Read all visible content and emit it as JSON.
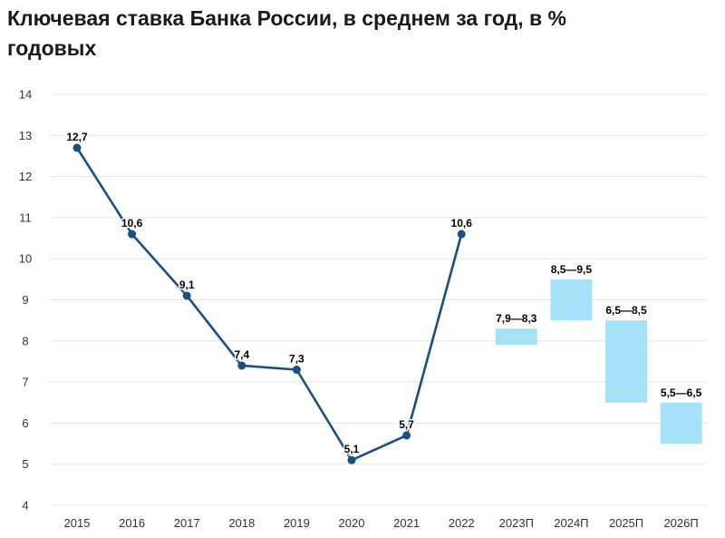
{
  "chart_data": {
    "type": "line",
    "title": "Ключевая ставка Банка России, в среднем за год, в % годовых",
    "xlabel": "",
    "ylabel": "",
    "ylim": [
      4,
      14
    ],
    "yticks": [
      "4",
      "5",
      "6",
      "7",
      "8",
      "9",
      "10",
      "11",
      "12",
      "13",
      "14"
    ],
    "categories": [
      "2015",
      "2016",
      "2017",
      "2018",
      "2019",
      "2020",
      "2021",
      "2022",
      "2023П",
      "2024П",
      "2025П",
      "2026П"
    ],
    "grid": true,
    "series": [
      {
        "type": "line",
        "values": [
          12.7,
          10.6,
          9.1,
          7.4,
          7.3,
          5.1,
          5.7,
          10.6,
          null,
          null,
          null,
          null
        ],
        "labels": [
          "12,7",
          "10,6",
          "9,1",
          "7,4",
          "7,3",
          "5,1",
          "5,7",
          "10,6",
          "",
          "",
          "",
          ""
        ]
      },
      {
        "type": "range",
        "ranges": [
          null,
          null,
          null,
          null,
          null,
          null,
          null,
          null,
          [
            7.9,
            8.3
          ],
          [
            8.5,
            9.5
          ],
          [
            6.5,
            8.5
          ],
          [
            5.5,
            6.5
          ]
        ],
        "labels": [
          "",
          "",
          "",
          "",
          "",
          "",
          "",
          "",
          "7,9—8,3",
          "8,5—9,5",
          "6,5—8,5",
          "5,5—6,5"
        ]
      }
    ],
    "colors": {
      "line": "#1b4f80",
      "marker": "#1b4f80",
      "range": "#a6e2f7",
      "grid": "#e3e3e3"
    }
  }
}
